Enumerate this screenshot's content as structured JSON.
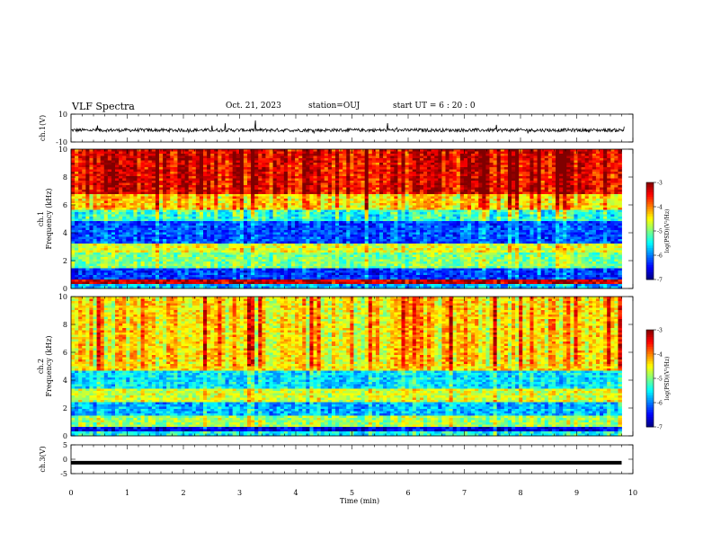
{
  "header": {
    "title": "VLF Spectra",
    "date": "Oct. 21, 2023",
    "station": "station=OUJ",
    "start": "start  UT =  6 : 20 : 0"
  },
  "chart_data": [
    {
      "type": "line",
      "panel": "ch1-waveform",
      "ylabel": "ch.1(V)",
      "ylim": [
        -10,
        10
      ],
      "yticks": [
        "10",
        "-10"
      ],
      "xlim": [
        0,
        10
      ],
      "series": [
        {
          "values_description_excluded": true,
          "baseline": -1.5,
          "noise_amplitude": 1.2
        }
      ]
    },
    {
      "type": "heatmap",
      "panel": "ch1-spectrogram",
      "ylabel": "ch.1 Frequency (kHz)",
      "ylabel_lines": [
        "ch.1",
        "Frequency (kHz)"
      ],
      "ylim": [
        0,
        10
      ],
      "yticks": [
        "0",
        "2",
        "4",
        "6",
        "8",
        "10"
      ],
      "xlim": [
        0,
        9.8
      ],
      "colorbar": {
        "label": "log(PSD)(V²/Hz)",
        "ticks": [
          "-3",
          "-4",
          "-5",
          "-6",
          "-7"
        ],
        "range": [
          -7,
          -3
        ]
      },
      "bands": [
        {
          "fmin": 0.0,
          "fmax": 0.3,
          "level": -5.8
        },
        {
          "fmin": 0.3,
          "fmax": 0.6,
          "level": -3.3
        },
        {
          "fmin": 0.6,
          "fmax": 1.4,
          "level": -6.3
        },
        {
          "fmin": 1.4,
          "fmax": 2.6,
          "level": -5.0
        },
        {
          "fmin": 2.6,
          "fmax": 3.2,
          "level": -4.6
        },
        {
          "fmin": 3.2,
          "fmax": 4.8,
          "level": -6.2
        },
        {
          "fmin": 4.8,
          "fmax": 5.6,
          "level": -5.3
        },
        {
          "fmin": 5.6,
          "fmax": 6.8,
          "level": -4.3
        },
        {
          "fmin": 6.8,
          "fmax": 10.0,
          "level": -3.4
        }
      ]
    },
    {
      "type": "heatmap",
      "panel": "ch2-spectrogram",
      "ylabel": "ch.2 Frequency (kHz)",
      "ylabel_lines": [
        "ch.2",
        "Frequency (kHz)"
      ],
      "ylim": [
        0,
        10
      ],
      "yticks": [
        "0",
        "2",
        "4",
        "6",
        "8",
        "10"
      ],
      "xlim": [
        0,
        9.8
      ],
      "colorbar": {
        "label": "log(PSD)(V²/Hz)",
        "ticks": [
          "-3",
          "-4",
          "-5",
          "-6",
          "-7"
        ],
        "range": [
          -7,
          -3
        ]
      },
      "bands": [
        {
          "fmin": 0.0,
          "fmax": 0.3,
          "level": -5.5
        },
        {
          "fmin": 0.3,
          "fmax": 0.7,
          "level": -6.6
        },
        {
          "fmin": 0.7,
          "fmax": 1.5,
          "level": -4.9
        },
        {
          "fmin": 1.5,
          "fmax": 2.4,
          "level": -5.8
        },
        {
          "fmin": 2.4,
          "fmax": 3.4,
          "level": -4.7
        },
        {
          "fmin": 3.4,
          "fmax": 4.6,
          "level": -5.6
        },
        {
          "fmin": 4.6,
          "fmax": 10.0,
          "level": -4.4
        }
      ]
    },
    {
      "type": "line",
      "panel": "ch3-waveform",
      "ylabel": "ch.3(V)",
      "ylim": [
        -5,
        5
      ],
      "yticks": [
        "5",
        "0",
        "-5"
      ],
      "xlim": [
        0,
        9.8
      ],
      "xlabel": "Time  (min)",
      "xticks": [
        "0",
        "1",
        "2",
        "3",
        "4",
        "5",
        "6",
        "7",
        "8",
        "9",
        "10"
      ],
      "series": [
        {
          "constant_value": -1.2
        }
      ]
    }
  ]
}
